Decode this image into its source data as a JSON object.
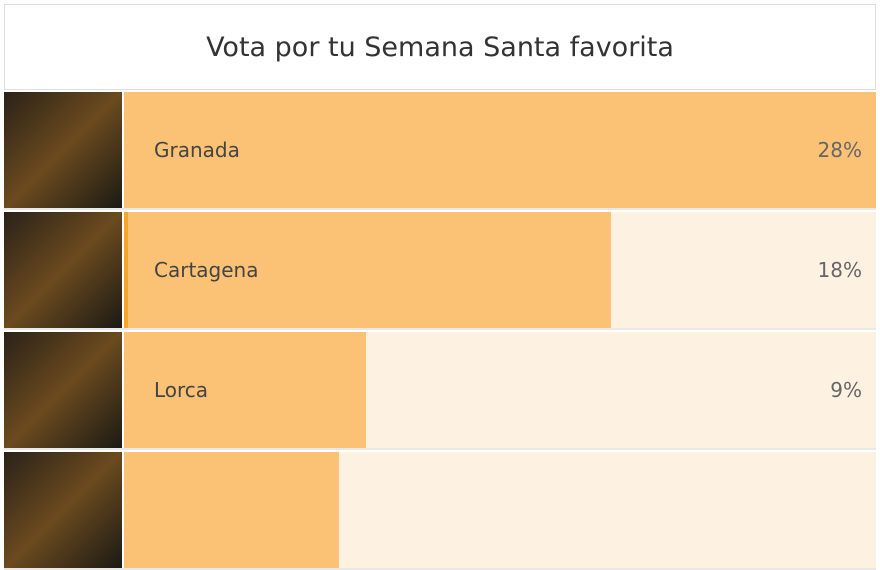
{
  "chart_data": {
    "type": "bar",
    "orientation": "horizontal",
    "title": "Vota por tu Semana Santa favorita",
    "categories": [
      "Granada",
      "Cartagena",
      "Lorca",
      null
    ],
    "values": [
      28,
      18,
      9,
      8
    ],
    "value_labels": [
      "28%",
      "18%",
      "9%",
      null
    ],
    "color": "#fbc174",
    "track_color": "#fdf1e1",
    "selected_color": "#f5a52a",
    "selected": 1
  }
}
